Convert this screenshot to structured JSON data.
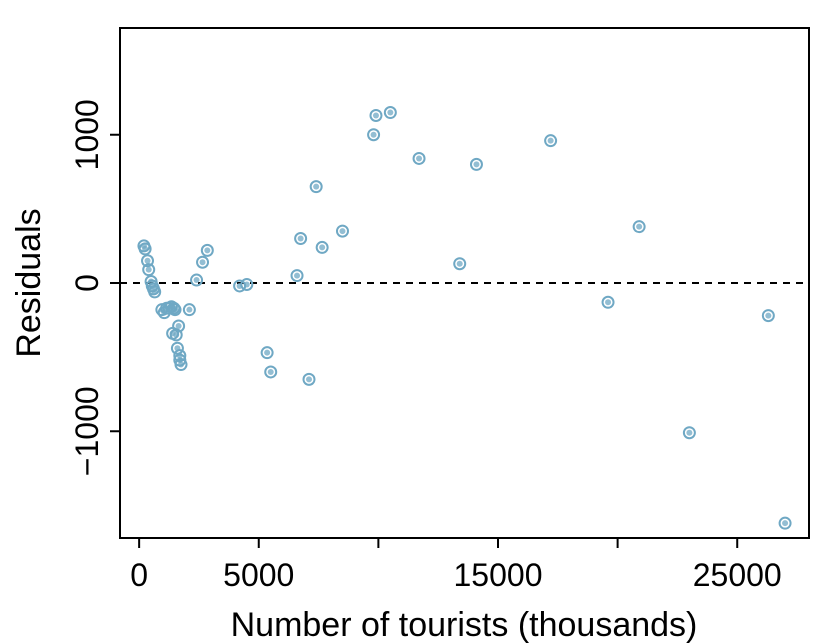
{
  "chart_data": {
    "type": "scatter",
    "title": "",
    "xlabel": "Number of tourists (thousands)",
    "ylabel": "Residuals",
    "xlim": [
      -800,
      28000
    ],
    "ylim": [
      -1720,
      1720
    ],
    "x_ticks": [
      0,
      5000,
      10000,
      15000,
      20000,
      25000
    ],
    "x_tick_labels": [
      "0",
      "5000",
      "",
      "15000",
      "",
      "25000"
    ],
    "y_ticks": [
      -1000,
      0,
      1000
    ],
    "y_tick_labels": [
      "−1000",
      "0",
      "1000"
    ],
    "reference_line": {
      "y": 0,
      "style": "dashed"
    },
    "grid": false,
    "point_color": "#6fa8c4",
    "points": [
      {
        "x": 200,
        "y": 250
      },
      {
        "x": 250,
        "y": 230
      },
      {
        "x": 350,
        "y": 150
      },
      {
        "x": 400,
        "y": 90
      },
      {
        "x": 500,
        "y": 10
      },
      {
        "x": 550,
        "y": -20
      },
      {
        "x": 600,
        "y": -40
      },
      {
        "x": 650,
        "y": -60
      },
      {
        "x": 950,
        "y": -180
      },
      {
        "x": 1050,
        "y": -200
      },
      {
        "x": 1150,
        "y": -170
      },
      {
        "x": 1250,
        "y": -170
      },
      {
        "x": 1350,
        "y": -160
      },
      {
        "x": 1400,
        "y": -340
      },
      {
        "x": 1450,
        "y": -170
      },
      {
        "x": 1500,
        "y": -180
      },
      {
        "x": 1550,
        "y": -350
      },
      {
        "x": 1600,
        "y": -440
      },
      {
        "x": 1650,
        "y": -290
      },
      {
        "x": 1700,
        "y": -490
      },
      {
        "x": 1700,
        "y": -520
      },
      {
        "x": 1750,
        "y": -550
      },
      {
        "x": 2100,
        "y": -180
      },
      {
        "x": 2400,
        "y": 20
      },
      {
        "x": 2650,
        "y": 140
      },
      {
        "x": 2850,
        "y": 220
      },
      {
        "x": 4200,
        "y": -20
      },
      {
        "x": 4500,
        "y": -10
      },
      {
        "x": 5350,
        "y": -470
      },
      {
        "x": 5500,
        "y": -600
      },
      {
        "x": 6600,
        "y": 50
      },
      {
        "x": 6750,
        "y": 300
      },
      {
        "x": 7100,
        "y": -650
      },
      {
        "x": 7400,
        "y": 650
      },
      {
        "x": 7650,
        "y": 240
      },
      {
        "x": 8500,
        "y": 350
      },
      {
        "x": 9800,
        "y": 1000
      },
      {
        "x": 9900,
        "y": 1130
      },
      {
        "x": 10500,
        "y": 1150
      },
      {
        "x": 11700,
        "y": 840
      },
      {
        "x": 13400,
        "y": 130
      },
      {
        "x": 14100,
        "y": 800
      },
      {
        "x": 17200,
        "y": 960
      },
      {
        "x": 19600,
        "y": -130
      },
      {
        "x": 20900,
        "y": 380
      },
      {
        "x": 23000,
        "y": -1010
      },
      {
        "x": 26300,
        "y": -220
      },
      {
        "x": 27000,
        "y": -1620
      }
    ]
  }
}
